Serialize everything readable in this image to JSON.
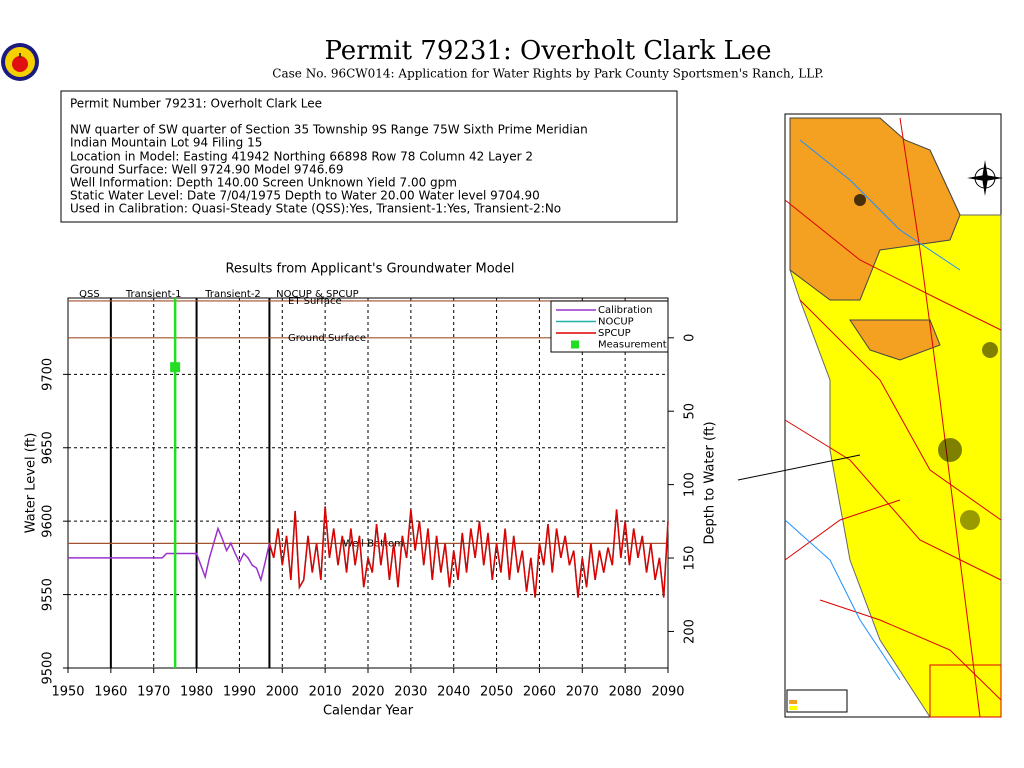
{
  "header": {
    "title": "Permit 79231:  Overholt Clark Lee",
    "subtitle": "Case No. 96CW014: Application for Water Rights by Park County Sportsmen's Ranch, LLP."
  },
  "info": {
    "lines": [
      "Permit Number 79231: Overholt Clark Lee",
      "NW quarter of SW quarter of Section 35 Township 9S Range 75W Sixth Prime Meridian",
      "Indian Mountain Lot 94 Filing 15",
      "Location in Model: Easting 41942 Northing  66898 Row  78 Column 42 Layer 2",
      "Ground Surface: Well   9724.90 Model  9746.69",
      "Well Information: Depth   140.00 Screen Unknown Yield     7.00 gpm",
      "Static Water Level: Date  7/04/1975 Depth to Water   20.00 Water level  9704.90",
      "Used in Calibration: Quasi-Steady State (QSS):Yes, Transient-1:Yes, Transient-2:No"
    ]
  },
  "chart_data": {
    "type": "line",
    "title": "Results from Applicant's Groundwater Model",
    "x_label": "Calendar Year",
    "y_label": "Water Level (ft)",
    "y2_label": "Depth to Water (ft)",
    "xlim": [
      1950,
      2090
    ],
    "xticks": [
      1950,
      1960,
      1970,
      1980,
      1990,
      2000,
      2010,
      2020,
      2030,
      2040,
      2050,
      2060,
      2070,
      2080,
      2090
    ],
    "ylim": [
      9500,
      9752
    ],
    "yticks": [
      9500,
      9550,
      9600,
      9650,
      9700
    ],
    "y2lim": [
      224.9,
      -27.1
    ],
    "y2ticks": [
      0,
      50,
      100,
      150,
      200
    ],
    "grid": true,
    "legend": "top-right",
    "periods": [
      {
        "label": "QSS",
        "start": 1950,
        "end": 1960
      },
      {
        "label": "Transient-1",
        "start": 1960,
        "end": 1980
      },
      {
        "label": "Transient-2",
        "start": 1980,
        "end": 1997
      },
      {
        "label": "NOCUP & SPCUP",
        "start": 1997,
        "end": 2090
      }
    ],
    "reference_lines": [
      {
        "label": "ET Surface",
        "value": 9750,
        "color": "#a0522d"
      },
      {
        "label": "Ground Surface",
        "value": 9724.9,
        "color": "#a0522d"
      },
      {
        "label": "Well Bottom",
        "value": 9584.9,
        "color": "#a0522d"
      }
    ],
    "series": [
      {
        "name": "Calibration",
        "color": "#9932cc",
        "mode": "line",
        "x": [
          1950,
          1972,
          1973,
          1980,
          1981,
          1982,
          1983,
          1984,
          1985,
          1986,
          1987,
          1988,
          1989,
          1990,
          1991,
          1992,
          1993,
          1994,
          1995,
          1996,
          1997
        ],
        "values": [
          9575,
          9575,
          9578,
          9578,
          9570,
          9562,
          9575,
          9585,
          9595,
          9588,
          9580,
          9585,
          9578,
          9572,
          9578,
          9575,
          9570,
          9568,
          9560,
          9572,
          9585
        ]
      },
      {
        "name": "NOCUP",
        "color": "#20b2aa",
        "mode": "line",
        "x": [
          1997,
          1998,
          1999,
          2000,
          2001,
          2002,
          2003,
          2004,
          2005,
          2006,
          2007,
          2008,
          2009,
          2010,
          2011,
          2012,
          2013,
          2014,
          2015,
          2016,
          2017,
          2018,
          2019,
          2020,
          2021,
          2022,
          2023,
          2024,
          2025,
          2026,
          2027,
          2028,
          2029,
          2030,
          2031,
          2032,
          2033,
          2034,
          2035,
          2036,
          2037,
          2038,
          2039,
          2040,
          2041,
          2042,
          2043,
          2044,
          2045,
          2046,
          2047,
          2048,
          2049,
          2050,
          2051,
          2052,
          2053,
          2054,
          2055,
          2056,
          2057,
          2058,
          2059,
          2060,
          2061,
          2062,
          2063,
          2064,
          2065,
          2066,
          2067,
          2068,
          2069,
          2070,
          2071,
          2072,
          2073,
          2074,
          2075,
          2076,
          2077,
          2078,
          2079,
          2080,
          2081,
          2082,
          2083,
          2084,
          2085,
          2086,
          2087,
          2088,
          2089,
          2090
        ],
        "values": [
          9585,
          9575,
          9595,
          9570,
          9590,
          9560,
          9607,
          9555,
          9560,
          9590,
          9565,
          9585,
          9560,
          9610,
          9575,
          9595,
          9570,
          9590,
          9565,
          9595,
          9570,
          9590,
          9555,
          9575,
          9565,
          9598,
          9570,
          9592,
          9560,
          9585,
          9555,
          9590,
          9575,
          9608,
          9580,
          9600,
          9570,
          9595,
          9560,
          9590,
          9565,
          9585,
          9555,
          9580,
          9560,
          9592,
          9565,
          9595,
          9575,
          9600,
          9570,
          9592,
          9560,
          9585,
          9565,
          9595,
          9560,
          9590,
          9565,
          9580,
          9552,
          9575,
          9548,
          9585,
          9570,
          9598,
          9565,
          9595,
          9575,
          9590,
          9570,
          9580,
          9548,
          9575,
          9555,
          9585,
          9560,
          9580,
          9565,
          9582,
          9570,
          9608,
          9575,
          9600,
          9570,
          9595,
          9575,
          9590,
          9565,
          9585,
          9560,
          9575,
          9548,
          9600
        ]
      },
      {
        "name": "SPCUP",
        "color": "#e00000",
        "mode": "line",
        "x": [
          1997,
          1998,
          1999,
          2000,
          2001,
          2002,
          2003,
          2004,
          2005,
          2006,
          2007,
          2008,
          2009,
          2010,
          2011,
          2012,
          2013,
          2014,
          2015,
          2016,
          2017,
          2018,
          2019,
          2020,
          2021,
          2022,
          2023,
          2024,
          2025,
          2026,
          2027,
          2028,
          2029,
          2030,
          2031,
          2032,
          2033,
          2034,
          2035,
          2036,
          2037,
          2038,
          2039,
          2040,
          2041,
          2042,
          2043,
          2044,
          2045,
          2046,
          2047,
          2048,
          2049,
          2050,
          2051,
          2052,
          2053,
          2054,
          2055,
          2056,
          2057,
          2058,
          2059,
          2060,
          2061,
          2062,
          2063,
          2064,
          2065,
          2066,
          2067,
          2068,
          2069,
          2070,
          2071,
          2072,
          2073,
          2074,
          2075,
          2076,
          2077,
          2078,
          2079,
          2080,
          2081,
          2082,
          2083,
          2084,
          2085,
          2086,
          2087,
          2088,
          2089,
          2090
        ],
        "values": [
          9585,
          9575,
          9595,
          9570,
          9590,
          9560,
          9607,
          9555,
          9560,
          9590,
          9565,
          9585,
          9560,
          9610,
          9575,
          9595,
          9570,
          9590,
          9565,
          9595,
          9570,
          9590,
          9555,
          9575,
          9565,
          9598,
          9570,
          9592,
          9560,
          9585,
          9555,
          9590,
          9575,
          9608,
          9580,
          9600,
          9570,
          9595,
          9560,
          9590,
          9565,
          9585,
          9555,
          9580,
          9560,
          9592,
          9565,
          9595,
          9575,
          9600,
          9570,
          9592,
          9560,
          9585,
          9565,
          9595,
          9560,
          9590,
          9565,
          9580,
          9552,
          9575,
          9548,
          9585,
          9570,
          9598,
          9565,
          9595,
          9575,
          9590,
          9570,
          9580,
          9548,
          9575,
          9555,
          9585,
          9560,
          9580,
          9565,
          9582,
          9570,
          9608,
          9575,
          9600,
          9570,
          9595,
          9575,
          9590,
          9565,
          9585,
          9560,
          9575,
          9548,
          9600
        ]
      },
      {
        "name": "Measurement",
        "color": "#22dd22",
        "mode": "marker",
        "x": [
          1975
        ],
        "values": [
          9704.9
        ]
      }
    ]
  }
}
